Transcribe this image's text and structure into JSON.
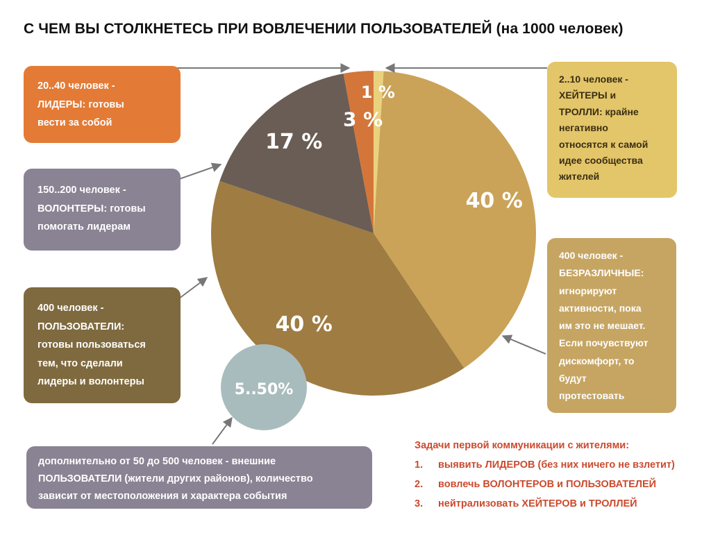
{
  "title": "С ЧЕМ ВЫ СТОЛКНЕТЕСЬ ПРИ ВОВЛЕЧЕНИИ ПОЛЬЗОВАТЕЛЕЙ (на 1000 человек)",
  "colors": {
    "leaders": "#e37b36",
    "volunteers": "#8a8394",
    "users": "#7f6a3f",
    "indifferent": "#c6a563",
    "haters": "#e3c56a",
    "external": "#8a8394",
    "external_circle": "#a9bcbd",
    "tasks": "#cc4a2e"
  },
  "chart_data": {
    "type": "pie",
    "title": "",
    "slices": [
      {
        "label": "1 %",
        "value": 1,
        "color": "#ead17e"
      },
      {
        "label": "40 %",
        "value": 40,
        "color": "#caa358"
      },
      {
        "label": "40 %",
        "value": 40,
        "color": "#9f7c42"
      },
      {
        "label": "17 %",
        "value": 17,
        "color": "#6a5d55"
      },
      {
        "label": "3 %",
        "value": 3,
        "color": "#d4763a"
      }
    ],
    "extra_circle_label": "5..50%"
  },
  "boxes": {
    "leaders": [
      "20..40 человек -",
      "ЛИДЕРЫ: готовы",
      "вести за собой"
    ],
    "volunteers": [
      "150..200 человек -",
      "ВОЛОНТЕРЫ: готовы",
      "помогать лидерам"
    ],
    "users": [
      "400 человек -",
      "ПОЛЬЗОВАТЕЛИ:",
      "готовы  пользоваться",
      "тем, что сделали",
      "лидеры и волонтеры"
    ],
    "haters": [
      "2..10 человек -",
      "ХЕЙТЕРЫ и",
      "ТРОЛЛИ: крайне",
      "негативно",
      "относятся к самой",
      "идее сообщества",
      "жителей"
    ],
    "indifferent": [
      "400 человек -",
      "БЕЗРАЗЛИЧНЫЕ:",
      "игнорируют",
      "активности, пока",
      "им это не мешает.",
      "Если почувствуют",
      "дискомфорт, то",
      "будут",
      "протестовать"
    ],
    "external": [
      "дополнительно от 50 до 500 человек - внешние",
      "ПОЛЬЗОВАТЕЛИ (жители других районов), количество",
      "зависит от местоположения и характера события"
    ]
  },
  "tasks": {
    "title": "Задачи первой коммуникации с жителями:",
    "items": [
      {
        "num": "1.",
        "text": "выявить ЛИДЕРОВ (без них ничего не взлетит)"
      },
      {
        "num": "2.",
        "text": "вовлечь ВОЛОНТЕРОВ и ПОЛЬЗОВАТЕЛЕЙ"
      },
      {
        "num": "3.",
        "text": "нейтрализовать ХЕЙТЕРОВ и ТРОЛЛЕЙ"
      }
    ]
  }
}
